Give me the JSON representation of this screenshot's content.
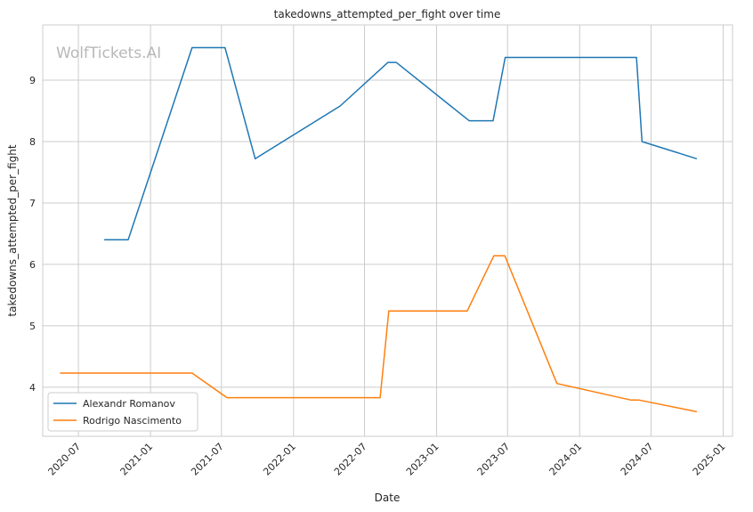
{
  "watermark": "WolfTickets.AI",
  "chart_data": {
    "type": "line",
    "title": "takedowns_attempted_per_fight over time",
    "xlabel": "Date",
    "ylabel": "takedowns_attempted_per_fight",
    "x_ticks": [
      "2020-07",
      "2021-01",
      "2021-07",
      "2022-01",
      "2022-07",
      "2023-01",
      "2023-07",
      "2024-01",
      "2024-07",
      "2025-01"
    ],
    "y_ticks": [
      4,
      5,
      6,
      7,
      8,
      9
    ],
    "xlim": [
      "2020-04-01",
      "2025-01-25"
    ],
    "ylim": [
      3.2,
      9.9
    ],
    "grid": true,
    "legend_position": "lower-left",
    "series": [
      {
        "name": "Alexandr Romanov",
        "color": "#1f77b4",
        "points": [
          [
            "2020-09-05",
            6.4
          ],
          [
            "2020-11-05",
            6.4
          ],
          [
            "2021-04-17",
            9.53
          ],
          [
            "2021-07-10",
            9.53
          ],
          [
            "2021-09-25",
            7.72
          ],
          [
            "2022-04-30",
            8.58
          ],
          [
            "2022-08-30",
            9.29
          ],
          [
            "2022-09-20",
            9.29
          ],
          [
            "2023-03-25",
            8.34
          ],
          [
            "2023-05-25",
            8.34
          ],
          [
            "2023-06-25",
            9.37
          ],
          [
            "2024-05-25",
            9.37
          ],
          [
            "2024-06-08",
            8.0
          ],
          [
            "2024-10-26",
            7.72
          ]
        ]
      },
      {
        "name": "Rodrigo Nascimento",
        "color": "#ff7f0e",
        "points": [
          [
            "2020-05-15",
            4.23
          ],
          [
            "2021-04-17",
            4.23
          ],
          [
            "2021-07-15",
            3.83
          ],
          [
            "2022-08-10",
            3.83
          ],
          [
            "2022-09-01",
            5.24
          ],
          [
            "2023-03-20",
            5.24
          ],
          [
            "2023-05-27",
            6.14
          ],
          [
            "2023-06-24",
            6.14
          ],
          [
            "2023-11-04",
            4.06
          ],
          [
            "2024-05-11",
            3.79
          ],
          [
            "2024-06-01",
            3.79
          ],
          [
            "2024-10-26",
            3.6
          ]
        ]
      }
    ]
  }
}
